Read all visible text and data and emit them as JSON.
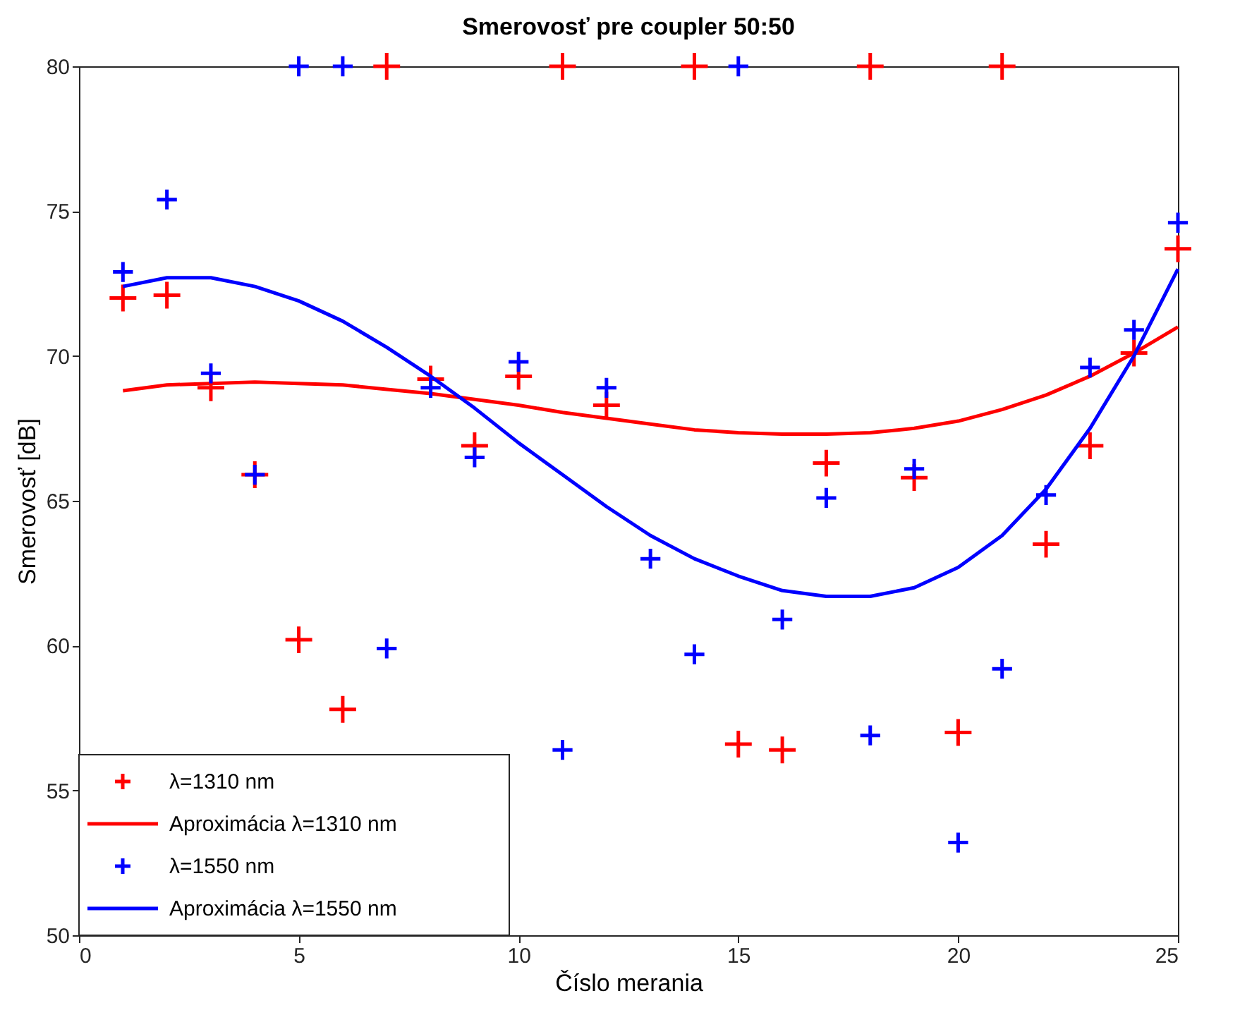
{
  "chart_data": {
    "type": "scatter",
    "title": "Smerovosť pre coupler 50:50",
    "xlabel": "Číslo merania",
    "ylabel": "Smerovosť [dB]",
    "x": [
      1,
      2,
      3,
      4,
      5,
      6,
      7,
      8,
      9,
      10,
      11,
      12,
      13,
      14,
      15,
      16,
      17,
      18,
      19,
      20,
      21,
      22,
      23,
      24,
      25
    ],
    "xlim": [
      0,
      25
    ],
    "xticks": [
      0,
      5,
      10,
      15,
      20,
      25
    ],
    "ylim": [
      50,
      80
    ],
    "yticks": [
      50,
      55,
      60,
      65,
      70,
      75,
      80
    ],
    "grid": false,
    "legend": "bottom left",
    "line_style": "solid",
    "series": [
      {
        "name": "λ=1310 nm",
        "marker": "cross",
        "color": "#ff0000",
        "values": [
          72.0,
          72.1,
          68.9,
          65.9,
          60.2,
          57.8,
          80,
          69.2,
          66.9,
          69.3,
          80,
          68.3,
          null,
          80,
          56.6,
          56.4,
          66.3,
          80,
          65.8,
          57.0,
          80,
          63.5,
          66.9,
          70.1,
          73.7
        ]
      },
      {
        "name": "Aproximácia λ=1310 nm",
        "type": "line",
        "marker": "none",
        "color": "#ff0000",
        "values": [
          68.8,
          69.0,
          69.05,
          69.1,
          69.05,
          69.0,
          68.85,
          68.7,
          68.5,
          68.3,
          68.05,
          67.85,
          67.65,
          67.45,
          67.35,
          67.3,
          67.3,
          67.35,
          67.5,
          67.75,
          68.15,
          68.65,
          69.3,
          70.1,
          71.0
        ]
      },
      {
        "name": "λ=1550 nm",
        "marker": "cross",
        "color": "#0000ff",
        "values": [
          72.9,
          75.4,
          69.4,
          65.9,
          80,
          80,
          59.9,
          68.9,
          66.5,
          69.8,
          56.4,
          68.9,
          63.0,
          59.7,
          80,
          60.9,
          65.1,
          56.9,
          66.1,
          53.2,
          59.2,
          65.2,
          69.6,
          70.9,
          74.6
        ]
      },
      {
        "name": "Aproximácia λ=1550 nm",
        "type": "line",
        "marker": "none",
        "color": "#0000ff",
        "values": [
          72.4,
          72.7,
          72.7,
          72.4,
          71.9,
          71.2,
          70.3,
          69.3,
          68.2,
          67.0,
          65.9,
          64.8,
          63.8,
          63.0,
          62.4,
          61.9,
          61.7,
          61.7,
          62.0,
          62.7,
          63.8,
          65.4,
          67.5,
          70.0,
          73.0
        ]
      }
    ]
  }
}
